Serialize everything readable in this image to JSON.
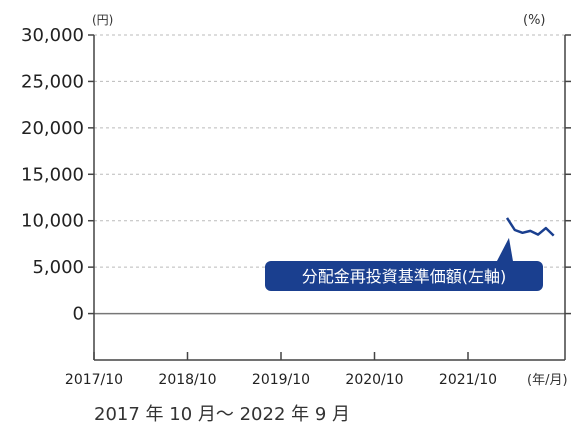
{
  "chart_data": {
    "type": "line",
    "title": "",
    "left_unit": "(円)",
    "right_unit": "(%)",
    "x_unit": "(年/月)",
    "x_tick_labels": [
      "2017/10",
      "2018/10",
      "2019/10",
      "2020/10",
      "2021/10"
    ],
    "y_tick_labels": [
      "30,000",
      "25,000",
      "20,000",
      "15,000",
      "10,000",
      "5,000",
      "0"
    ],
    "y_ticks": [
      30000,
      25000,
      20000,
      15000,
      10000,
      5000,
      0
    ],
    "ylim": [
      -5000,
      30000
    ],
    "grid": true,
    "series": [
      {
        "name": "分配金再投資基準価額(左軸)",
        "color": "#1a3f8f",
        "axis": "left",
        "x": [
          "2022/03",
          "2022/04",
          "2022/05",
          "2022/06",
          "2022/07",
          "2022/08",
          "2022/09"
        ],
        "values": [
          10300,
          9000,
          8700,
          8900,
          8500,
          9200,
          8400
        ]
      }
    ]
  },
  "caption": "2017 年 10 月～ 2022 年 9 月",
  "colors": {
    "line": "#1a3f8f",
    "label_bg": "#1a3f8f",
    "axis": "#444444",
    "grid": "#bbbbbb"
  }
}
